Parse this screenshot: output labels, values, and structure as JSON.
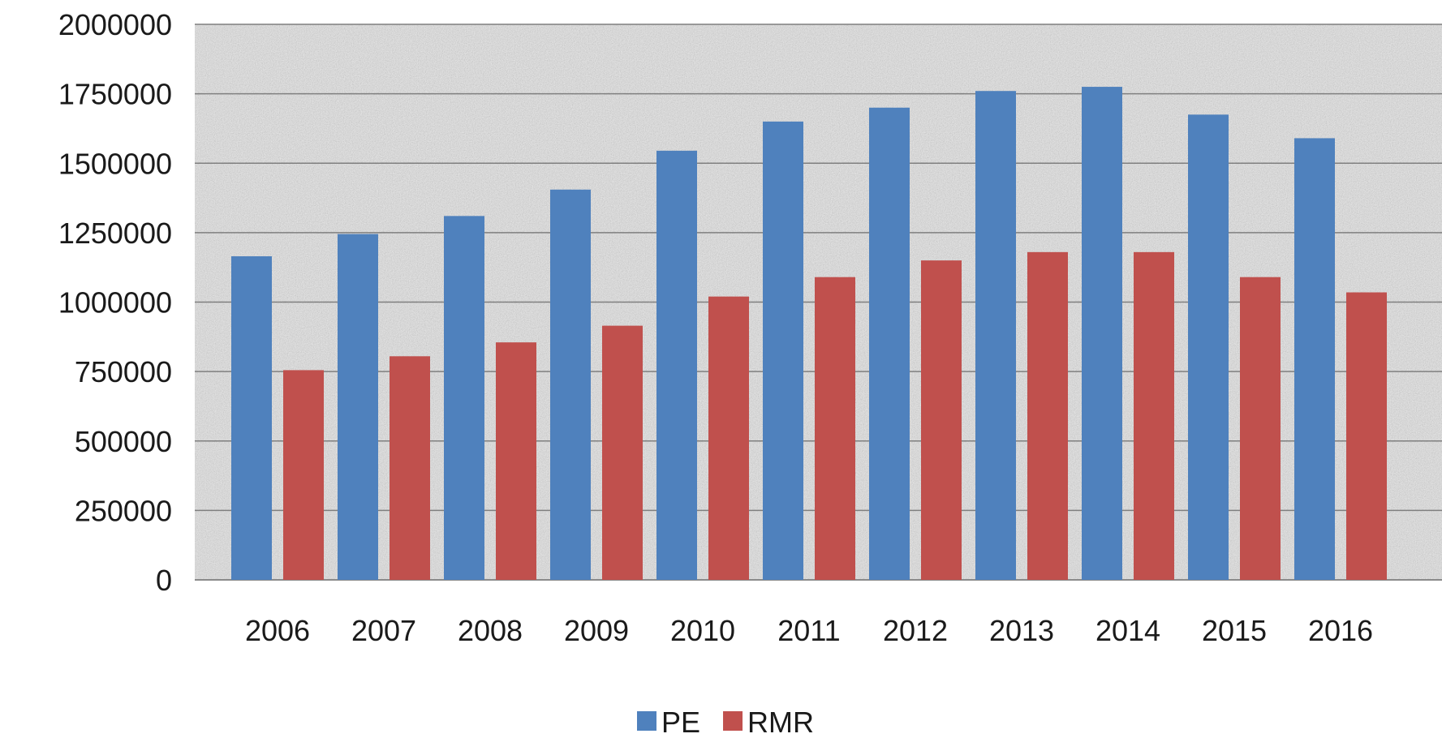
{
  "chart_data": {
    "type": "bar",
    "title": "",
    "xlabel": "",
    "ylabel": "",
    "categories": [
      "2006",
      "2007",
      "2008",
      "2009",
      "2010",
      "2011",
      "2012",
      "2013",
      "2014",
      "2015",
      "2016"
    ],
    "series": [
      {
        "name": "PE",
        "color": "#4f81bd",
        "values": [
          1165000,
          1245000,
          1310000,
          1405000,
          1545000,
          1650000,
          1700000,
          1760000,
          1775000,
          1675000,
          1590000
        ]
      },
      {
        "name": "RMR",
        "color": "#c0504d",
        "values": [
          755000,
          805000,
          855000,
          915000,
          1020000,
          1090000,
          1150000,
          1180000,
          1180000,
          1090000,
          1035000
        ]
      }
    ],
    "ylim": [
      0,
      2000000
    ],
    "yticks": [
      "0",
      "250000",
      "500000",
      "750000",
      "1000000",
      "1250000",
      "1500000",
      "1750000",
      "2000000"
    ],
    "grid": true,
    "legend_position": "bottom",
    "plot_background": "grey granite texture"
  }
}
